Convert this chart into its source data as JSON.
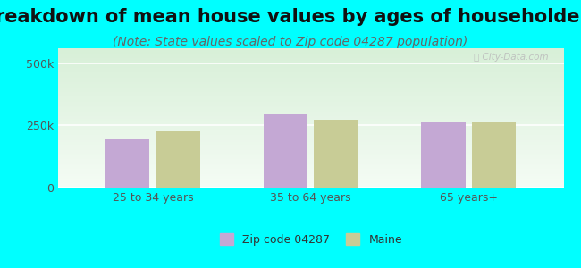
{
  "title": "Breakdown of mean house values by ages of householders",
  "subtitle": "(Note: State values scaled to Zip code 04287 population)",
  "categories": [
    "25 to 34 years",
    "35 to 64 years",
    "65 years+"
  ],
  "zip_values": [
    195000,
    295000,
    262000
  ],
  "state_values": [
    225000,
    272000,
    262000
  ],
  "zip_color": "#c4a8d4",
  "state_color": "#c8cc96",
  "ylim": [
    0,
    560000
  ],
  "ytick_labels": [
    "0",
    "250k",
    "500k"
  ],
  "ytick_vals": [
    0,
    250000,
    500000
  ],
  "legend_zip": "Zip code 04287",
  "legend_state": "Maine",
  "bg_outer": "#00ffff",
  "title_fontsize": 15,
  "subtitle_fontsize": 10,
  "bar_width": 0.28
}
